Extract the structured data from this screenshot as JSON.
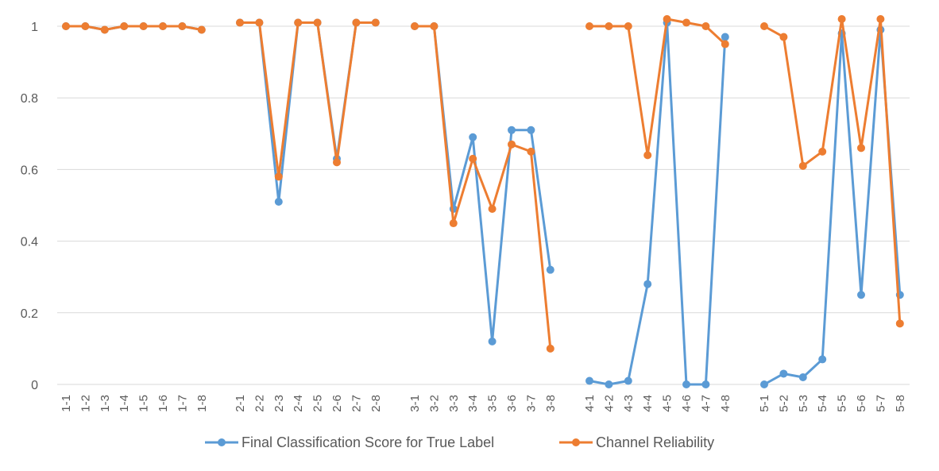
{
  "chart_data": {
    "type": "line",
    "title": "",
    "xlabel": "",
    "ylabel": "",
    "ylim": [
      0,
      1
    ],
    "yticks": [
      "0",
      "0.2",
      "0.4",
      "0.6",
      "0.8",
      "1"
    ],
    "grid": true,
    "legend": "bottom",
    "categories": [
      "1-1",
      "1-2",
      "1-3",
      "1-4",
      "1-5",
      "1-6",
      "1-7",
      "1-8",
      "2-1",
      "2-2",
      "2-3",
      "2-4",
      "2-5",
      "2-6",
      "2-7",
      "2-8",
      "3-1",
      "3-2",
      "3-3",
      "3-4",
      "3-5",
      "3-6",
      "3-7",
      "3-8",
      "4-1",
      "4-2",
      "4-3",
      "4-4",
      "4-5",
      "4-6",
      "4-7",
      "4-8",
      "5-1",
      "5-2",
      "5-3",
      "5-4",
      "5-5",
      "5-6",
      "5-7",
      "5-8"
    ],
    "series": [
      {
        "name": "Final Classification Score for True Label",
        "color": "#5b9bd5",
        "values": [
          1.0,
          1.0,
          0.99,
          1.0,
          1.0,
          1.0,
          1.0,
          0.99,
          1.01,
          1.01,
          0.51,
          1.01,
          1.01,
          0.63,
          1.01,
          1.01,
          1.0,
          1.0,
          0.49,
          0.69,
          0.12,
          0.71,
          0.71,
          0.32,
          0.01,
          0.0,
          0.01,
          0.28,
          1.01,
          0.0,
          0.0,
          0.97,
          0.0,
          0.03,
          0.02,
          0.07,
          0.98,
          0.25,
          0.99,
          0.25
        ]
      },
      {
        "name": "Channel Reliability",
        "color": "#ed7d31",
        "values": [
          1.0,
          1.0,
          0.99,
          1.0,
          1.0,
          1.0,
          1.0,
          0.99,
          1.01,
          1.01,
          0.58,
          1.01,
          1.01,
          0.62,
          1.01,
          1.01,
          1.0,
          1.0,
          0.45,
          0.63,
          0.49,
          0.67,
          0.65,
          0.1,
          1.0,
          1.0,
          1.0,
          0.64,
          1.02,
          1.01,
          1.0,
          0.95,
          1.0,
          0.97,
          0.61,
          0.65,
          1.02,
          0.66,
          1.02,
          0.17
        ]
      }
    ]
  }
}
